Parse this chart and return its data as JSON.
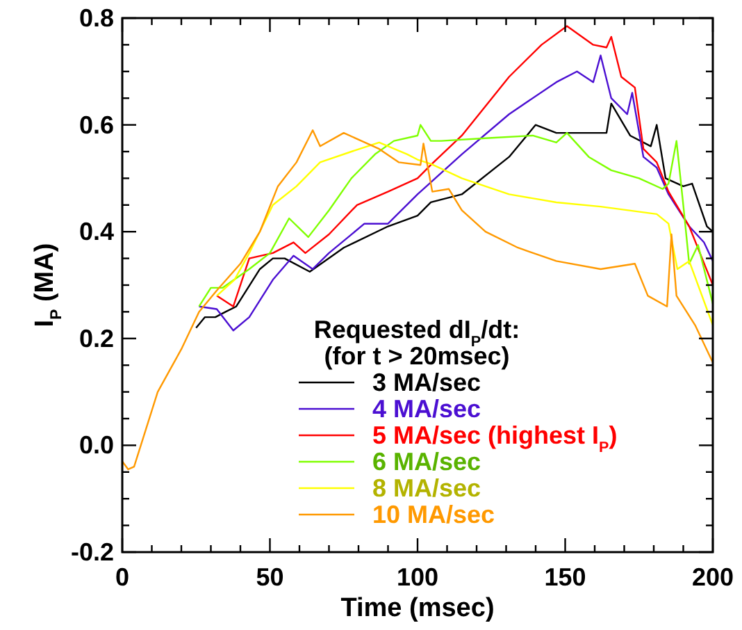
{
  "chart_data": {
    "type": "line",
    "xlabel": "Time (msec)",
    "ylabel": "I$_{P}$ (MA)",
    "legend_title": "Requested dI$_{P}$/dt:\n(for t > 20msec)",
    "legend": "bottom",
    "grid": false,
    "xlim": [
      0,
      200
    ],
    "ylim": [
      -0.2,
      0.8
    ],
    "xticks": [
      0,
      {
        "value": 10,
        "label": null
      },
      {
        "value": 20,
        "label": null
      },
      {
        "value": 30,
        "label": null
      },
      {
        "value": 40,
        "label": null
      },
      50,
      {
        "value": 60,
        "label": null
      },
      {
        "value": 70,
        "label": null
      },
      {
        "value": 80,
        "label": null
      },
      {
        "value": 90,
        "label": null
      },
      100,
      {
        "value": 110,
        "label": null
      },
      {
        "value": 120,
        "label": null
      },
      {
        "value": 130,
        "label": null
      },
      {
        "value": 140,
        "label": null
      },
      150,
      {
        "value": 160,
        "label": null
      },
      {
        "value": 170,
        "label": null
      },
      {
        "value": 180,
        "label": null
      },
      {
        "value": 190,
        "label": null
      },
      200
    ],
    "yticks": [
      -0.2,
      {
        "value": -0.15,
        "label": null
      },
      {
        "value": -0.1,
        "label": null
      },
      {
        "value": -0.05,
        "label": null
      },
      {
        "value": 0,
        "label": "0.0"
      },
      {
        "value": 0.05,
        "label": null
      },
      {
        "value": 0.1,
        "label": null
      },
      {
        "value": 0.15,
        "label": null
      },
      0.2,
      {
        "value": 0.25,
        "label": null
      },
      {
        "value": 0.3,
        "label": null
      },
      {
        "value": 0.35,
        "label": null
      },
      0.4,
      {
        "value": 0.45,
        "label": null
      },
      {
        "value": 0.5,
        "label": null
      },
      {
        "value": 0.55,
        "label": null
      },
      0.6,
      {
        "value": 0.65,
        "label": null
      },
      {
        "value": 0.7,
        "label": null
      },
      {
        "value": 0.75,
        "label": null
      },
      0.8
    ],
    "series": [
      {
        "name": "3 MA/sec",
        "color": "#000000",
        "x": [
          25,
          28,
          31.5,
          35,
          38.6,
          46.6,
          51,
          55,
          63.5,
          75,
          90,
          100,
          104.5,
          115,
          131,
          140,
          147,
          164,
          165.6,
          172,
          179,
          181,
          184,
          190,
          193,
          198,
          200
        ],
        "values": [
          0.22,
          0.24,
          0.24,
          0.25,
          0.26,
          0.33,
          0.35,
          0.35,
          0.325,
          0.37,
          0.41,
          0.43,
          0.455,
          0.47,
          0.54,
          0.6,
          0.585,
          0.585,
          0.64,
          0.58,
          0.56,
          0.6,
          0.5,
          0.485,
          0.49,
          0.41,
          0.4
        ]
      },
      {
        "name": "4 MA/sec",
        "color": "#4b0fd2",
        "x": [
          26,
          32,
          37.6,
          43,
          51,
          58,
          64.5,
          70,
          82,
          90,
          100,
          104,
          115,
          131,
          147,
          154,
          159.5,
          162,
          165.6,
          171,
          172.7,
          176.5,
          181,
          185,
          192,
          197,
          200
        ],
        "values": [
          0.26,
          0.255,
          0.215,
          0.24,
          0.31,
          0.355,
          0.33,
          0.36,
          0.415,
          0.415,
          0.47,
          0.49,
          0.545,
          0.62,
          0.68,
          0.7,
          0.68,
          0.73,
          0.65,
          0.62,
          0.66,
          0.54,
          0.52,
          0.47,
          0.41,
          0.38,
          0.345
        ]
      },
      {
        "name": "5 MA/sec (highest I$_{P}$)",
        "color": "#ff0000",
        "x": [
          32,
          37.6,
          43,
          51,
          58,
          62,
          70,
          79.5,
          90,
          100,
          104.5,
          115,
          131,
          142,
          150.6,
          159.5,
          164,
          165.6,
          169,
          173.6,
          176.5,
          181,
          185,
          192,
          200
        ],
        "values": [
          0.28,
          0.26,
          0.35,
          0.36,
          0.38,
          0.36,
          0.395,
          0.45,
          0.475,
          0.5,
          0.525,
          0.58,
          0.69,
          0.75,
          0.785,
          0.75,
          0.745,
          0.765,
          0.69,
          0.67,
          0.555,
          0.53,
          0.475,
          0.41,
          0.3
        ]
      },
      {
        "name": "6 MA/sec",
        "color": "#7fff00",
        "x": [
          26,
          30,
          34,
          43,
          50,
          56.5,
          63,
          70,
          77.6,
          85.6,
          92,
          100,
          101,
          104.5,
          108,
          123,
          139,
          147,
          150.6,
          158,
          165.6,
          175,
          183,
          185,
          187.7,
          190,
          192,
          195,
          200
        ],
        "values": [
          0.26,
          0.295,
          0.295,
          0.33,
          0.36,
          0.425,
          0.39,
          0.44,
          0.5,
          0.545,
          0.57,
          0.58,
          0.6,
          0.57,
          0.57,
          0.575,
          0.58,
          0.567,
          0.585,
          0.54,
          0.515,
          0.5,
          0.48,
          0.49,
          0.57,
          0.45,
          0.34,
          0.375,
          0.265
        ]
      },
      {
        "name": "8 MA/sec",
        "color": "#ffff00",
        "x": [
          32,
          38,
          43,
          51,
          59,
          67,
          77.6,
          87,
          96.5,
          100,
          104.5,
          115,
          131,
          147,
          162,
          181,
          185,
          188,
          192,
          200
        ],
        "values": [
          0.28,
          0.31,
          0.36,
          0.45,
          0.485,
          0.53,
          0.55,
          0.567,
          0.545,
          0.535,
          0.527,
          0.5,
          0.47,
          0.455,
          0.447,
          0.433,
          0.415,
          0.33,
          0.345,
          0.225
        ]
      },
      {
        "name": "10 MA/sec",
        "color": "#ff9900",
        "x": [
          0,
          2,
          4,
          8,
          12,
          16,
          20,
          26,
          32,
          40,
          46.6,
          52.7,
          59,
          64.5,
          67,
          75,
          81,
          87,
          93.6,
          101,
          102,
          105,
          110.6,
          115,
          123,
          134,
          147,
          162,
          173.6,
          178,
          184.5,
          186,
          187.7,
          194,
          200
        ],
        "values": [
          -0.03,
          -0.045,
          -0.04,
          0.03,
          0.1,
          0.14,
          0.18,
          0.25,
          0.29,
          0.34,
          0.4,
          0.485,
          0.53,
          0.59,
          0.56,
          0.585,
          0.57,
          0.555,
          0.53,
          0.525,
          0.565,
          0.475,
          0.48,
          0.44,
          0.4,
          0.37,
          0.345,
          0.33,
          0.34,
          0.28,
          0.26,
          0.395,
          0.28,
          0.225,
          0.155
        ]
      }
    ]
  }
}
